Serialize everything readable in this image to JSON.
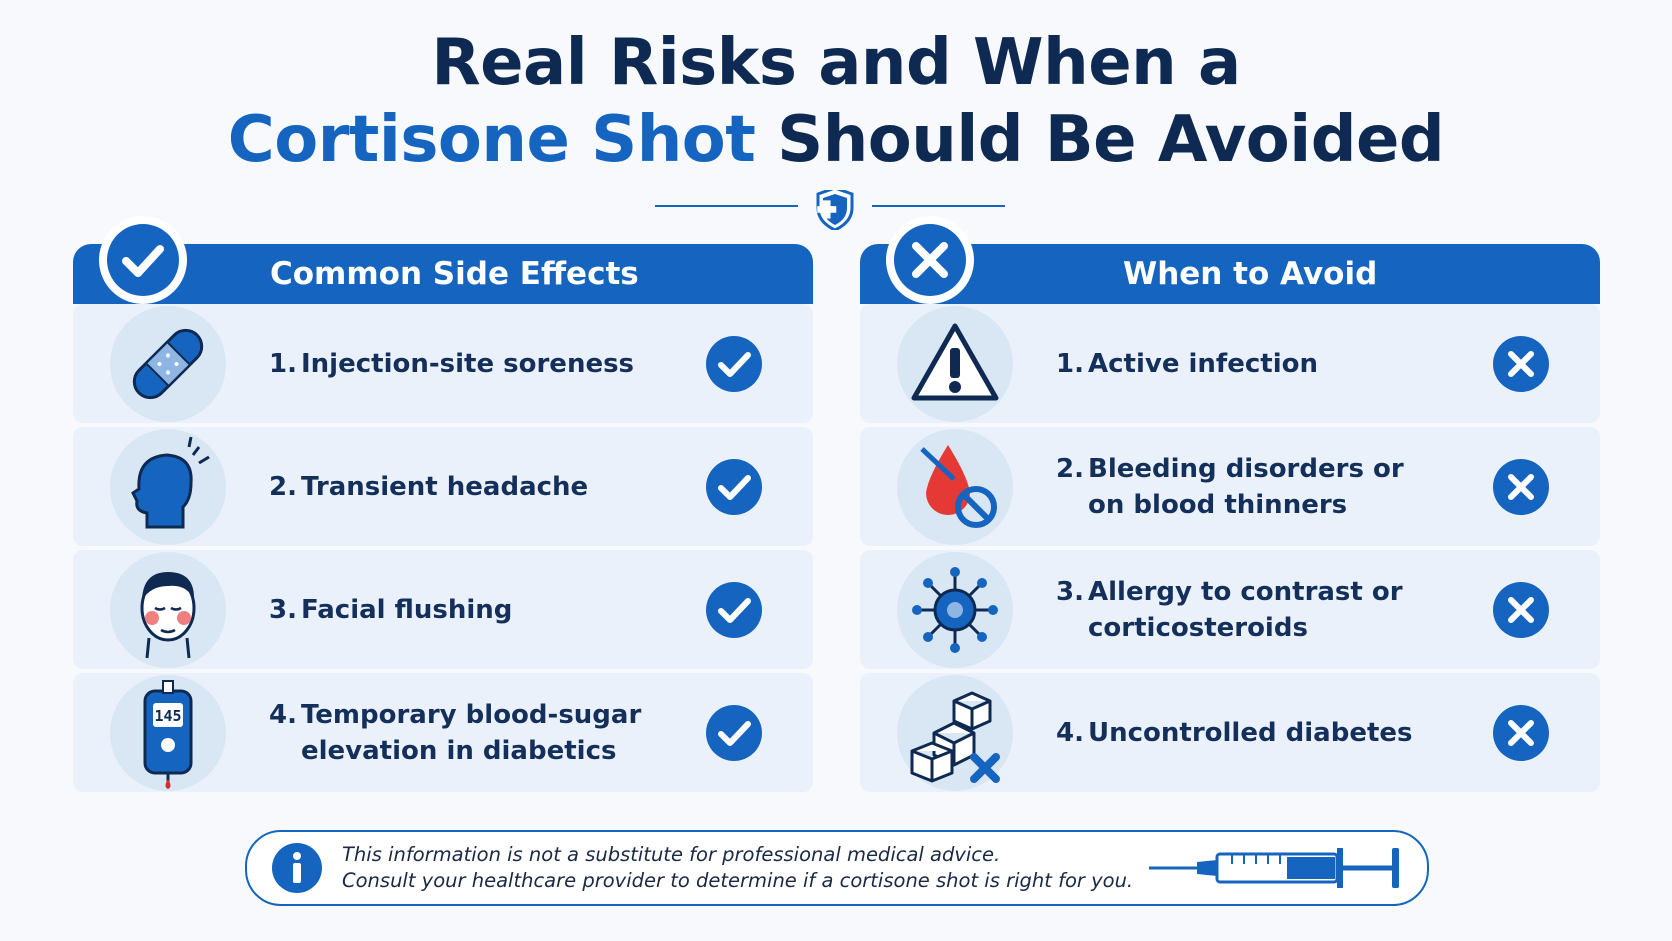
{
  "title": {
    "line1": "Real Risks and When a",
    "highlight": "Cortisone Shot",
    "line2_rest": "Should Be Avoided"
  },
  "panels": [
    {
      "heading": "Common Side Effects",
      "items": [
        {
          "number": "1.",
          "lines": [
            "Injection-site soreness"
          ]
        },
        {
          "number": "2.",
          "lines": [
            "Transient headache"
          ]
        },
        {
          "number": "3.",
          "lines": [
            "Facial flushing"
          ]
        },
        {
          "number": "4.",
          "lines": [
            "Temporary blood-sugar",
            "elevation in diabetics"
          ]
        }
      ]
    },
    {
      "heading": "When to Avoid",
      "items": [
        {
          "number": "1.",
          "lines": [
            "Active infection"
          ]
        },
        {
          "number": "2.",
          "lines": [
            "Bleeding disorders or",
            "on blood thinners"
          ]
        },
        {
          "number": "3.",
          "lines": [
            "Allergy to contrast or",
            "corticosteroids"
          ]
        },
        {
          "number": "4.",
          "lines": [
            "Uncontrolled diabetes"
          ]
        }
      ]
    }
  ],
  "note": {
    "lines": [
      "This information is not a substitute for professional medical advice.",
      "Consult your healthcare provider to determine if a cortisone shot is right for you."
    ]
  },
  "meter_reading": "145"
}
